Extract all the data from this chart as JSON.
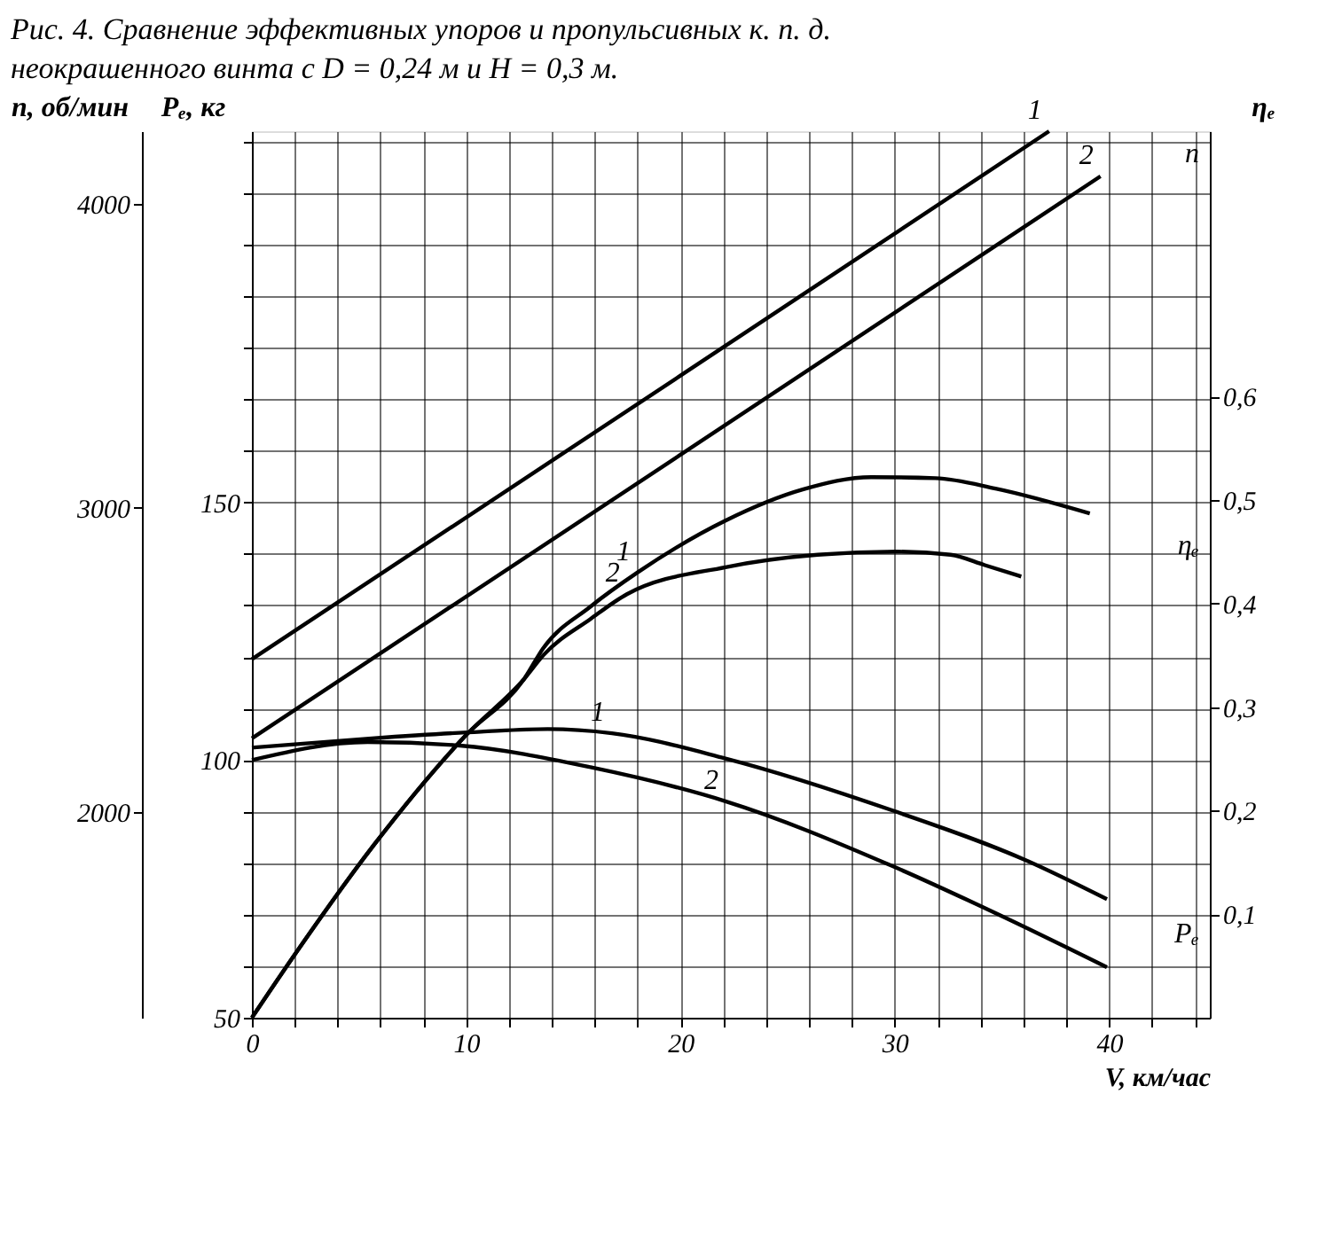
{
  "chart_data": {
    "type": "line",
    "title": "Рис. 4. Сравнение эффективных упоров и пропульсивных к. п. д. неокрашенного винта с D = 0,24 м и H = 0,3 м.",
    "xlabel": "V, км/час",
    "ylabel": "Pₑ, кг",
    "y2label": "ηₑ",
    "y3label": "n, об/мин",
    "xlim": [
      0,
      44.7
    ],
    "xticks": [
      0,
      {
        "value": 2,
        "label": null
      },
      {
        "value": 4,
        "label": null
      },
      {
        "value": 6,
        "label": null
      },
      {
        "value": 8,
        "label": null
      },
      10,
      {
        "value": 12,
        "label": null
      },
      {
        "value": 14,
        "label": null
      },
      {
        "value": 16,
        "label": null
      },
      {
        "value": 18,
        "label": null
      },
      20,
      {
        "value": 22,
        "label": null
      },
      {
        "value": 24,
        "label": null
      },
      {
        "value": 26,
        "label": null
      },
      {
        "value": 28,
        "label": null
      },
      30,
      {
        "value": 32,
        "label": null
      },
      {
        "value": 34,
        "label": null
      },
      {
        "value": 36,
        "label": null
      },
      {
        "value": 38,
        "label": null
      },
      40,
      {
        "value": 42,
        "label": null
      },
      {
        "value": 44,
        "label": null
      }
    ],
    "ylim": [
      50,
      222
    ],
    "yticks": [
      50,
      {
        "value": 60,
        "label": null
      },
      {
        "value": 70,
        "label": null
      },
      {
        "value": 80,
        "label": null
      },
      {
        "value": 90,
        "label": null
      },
      100,
      {
        "value": 110,
        "label": null
      },
      {
        "value": 120,
        "label": null
      },
      {
        "value": 130,
        "label": null
      },
      {
        "value": 140,
        "label": null
      },
      150,
      {
        "value": 160,
        "label": null
      },
      {
        "value": 170,
        "label": null
      },
      {
        "value": 180,
        "label": null
      },
      {
        "value": 190,
        "label": null
      },
      {
        "value": 200,
        "label": null
      },
      {
        "value": 210,
        "label": null
      },
      {
        "value": 220,
        "label": null
      }
    ],
    "y2lim": [
      0,
      0.856
    ],
    "y2ticks": [
      {
        "value": 0.1,
        "label": "0,1"
      },
      {
        "value": 0.2,
        "label": "0,2"
      },
      {
        "value": 0.3,
        "label": "0,3"
      },
      {
        "value": 0.4,
        "label": "0,4"
      },
      {
        "value": 0.5,
        "label": "0,5"
      },
      {
        "value": 0.6,
        "label": "0,6"
      }
    ],
    "y3lim": [
      1325,
      4238
    ],
    "y3ticks": [
      2000,
      3000,
      4000
    ],
    "grid": true,
    "legend": false,
    "marker": "none",
    "line_style": "solid",
    "series": [
      {
        "name": "1",
        "axis": "y3",
        "color": "#000000",
        "x": [
          0,
          20,
          37.2
        ],
        "values": [
          2503,
          3435,
          4238
        ]
      },
      {
        "name": "2",
        "axis": "y3",
        "color": "#000000",
        "x": [
          0,
          20,
          39.6
        ],
        "values": [
          2243,
          3175,
          4090
        ]
      },
      {
        "name": "1",
        "axis": "y2",
        "color": "#000000",
        "x": [
          0,
          2,
          5.7,
          10,
          12.7,
          13.6,
          15.8,
          18,
          22.1,
          25.7,
          28.9,
          31.9,
          34.7,
          39.1
        ],
        "values": [
          0,
          0.061,
          0.167,
          0.273,
          0.327,
          0.357,
          0.397,
          0.43,
          0.48,
          0.51,
          0.522,
          0.521,
          0.511,
          0.487
        ]
      },
      {
        "name": "2",
        "axis": "y2",
        "color": "#000000",
        "x": [
          0,
          2,
          5.7,
          10,
          12.7,
          13.6,
          15.8,
          17.5,
          22.1,
          26.4,
          30.1,
          32.6,
          34.2,
          35.9
        ],
        "values": [
          0,
          0.061,
          0.167,
          0.273,
          0.327,
          0.35,
          0.385,
          0.409,
          0.435,
          0.447,
          0.45,
          0.447,
          0.437,
          0.426
        ]
      },
      {
        "name": "1",
        "axis": "y",
        "color": "#000000",
        "x": [
          0,
          5.6,
          10.7,
          13.8,
          16.8,
          22.1,
          29.9,
          36.2,
          39.9
        ],
        "values": [
          102.4,
          104.2,
          105.5,
          106,
          105.2,
          100.3,
          90.2,
          80.4,
          73
        ]
      },
      {
        "name": "2",
        "axis": "y",
        "color": "#000000",
        "x": [
          0,
          5.4,
          9.7,
          15.8,
          22.1,
          29.9,
          34.7,
          39.9
        ],
        "values": [
          100,
          103.5,
          102.8,
          98.6,
          92,
          79.4,
          70.3,
          59.8
        ]
      }
    ],
    "annotations": [
      "n",
      "ηₑ",
      "Pₑ"
    ]
  }
}
